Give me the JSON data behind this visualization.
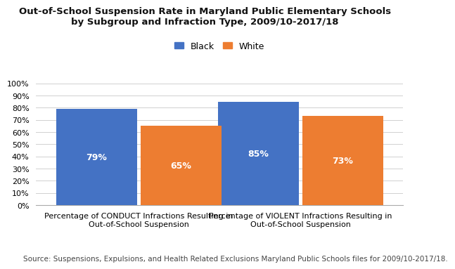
{
  "title_line1": "Out-of-School Suspension Rate in Maryland Public Elementary Schools",
  "title_line2": "by Subgroup and Infraction Type, 2009/10-2017/18",
  "categories": [
    "Percentage of CONDUCT Infractions Resulting in\nOut-of-School Suspension",
    "Percentage of VIOLENT Infractions Resulting in\nOut-of-School Suspension"
  ],
  "series": {
    "Black": [
      79,
      85
    ],
    "White": [
      65,
      73
    ]
  },
  "bar_colors": {
    "Black": "#4472C4",
    "White": "#ED7D31"
  },
  "labels": {
    "Black": [
      "79%",
      "85%"
    ],
    "White": [
      "65%",
      "73%"
    ]
  },
  "ylim": [
    0,
    100
  ],
  "yticks": [
    0,
    10,
    20,
    30,
    40,
    50,
    60,
    70,
    80,
    90,
    100
  ],
  "ytick_labels": [
    "0%",
    "10%",
    "20%",
    "30%",
    "40%",
    "50%",
    "60%",
    "70%",
    "80%",
    "90%",
    "100%"
  ],
  "source_text": "Source: Suspensions, Expulsions, and Health Related Exclusions Maryland Public Schools files for 2009/10-2017/18.",
  "legend_labels": [
    "Black",
    "White"
  ],
  "background_color": "#FFFFFF",
  "bar_width": 0.22,
  "group_centers": [
    0.28,
    0.72
  ],
  "title_fontsize": 9.5,
  "tick_fontsize": 8,
  "label_fontsize": 9,
  "source_fontsize": 7.5,
  "legend_fontsize": 9
}
